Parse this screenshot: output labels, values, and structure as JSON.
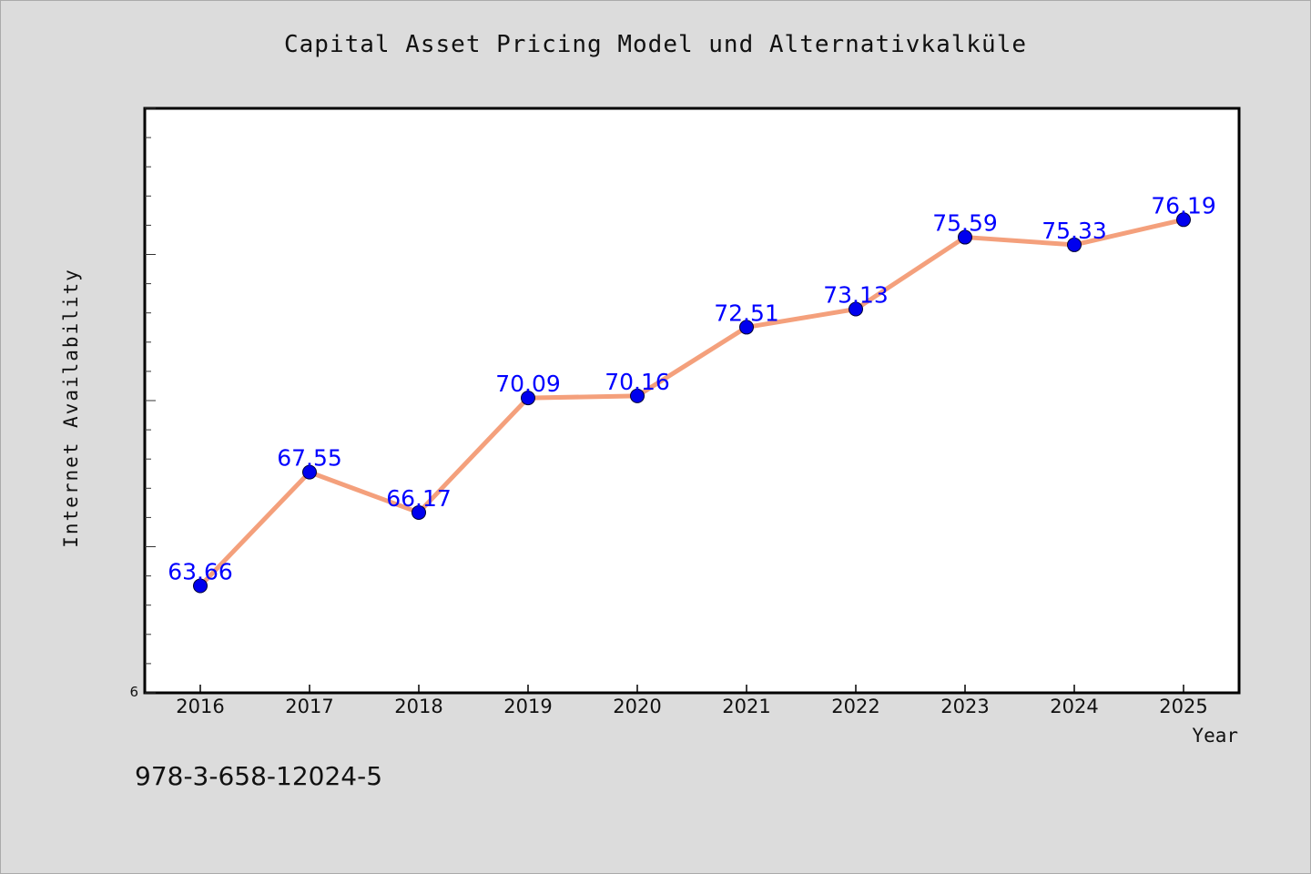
{
  "chart_data": {
    "type": "line",
    "title": "Capital Asset Pricing Model und Alternativkalküle",
    "xlabel": "Year",
    "ylabel": "Internet Availability",
    "categories": [
      "2016",
      "2017",
      "2018",
      "2019",
      "2020",
      "2021",
      "2022",
      "2023",
      "2024",
      "2025"
    ],
    "series": [
      {
        "values": [
          63.66,
          67.55,
          66.17,
          70.09,
          70.16,
          72.51,
          73.13,
          75.59,
          75.33,
          76.19
        ],
        "labels": [
          "63.66",
          "67.55",
          "66.17",
          "70.09",
          "70.16",
          "72.51",
          "73.13",
          "75.59",
          "75.33",
          "76.19"
        ],
        "line_color": "#f4a07c",
        "marker_color": "#0000ee"
      }
    ],
    "ylim": [
      60,
      80
    ],
    "y_min_tick_label": "6",
    "grid": false,
    "legend": "none"
  },
  "footnote": "978-3-658-12024-5"
}
